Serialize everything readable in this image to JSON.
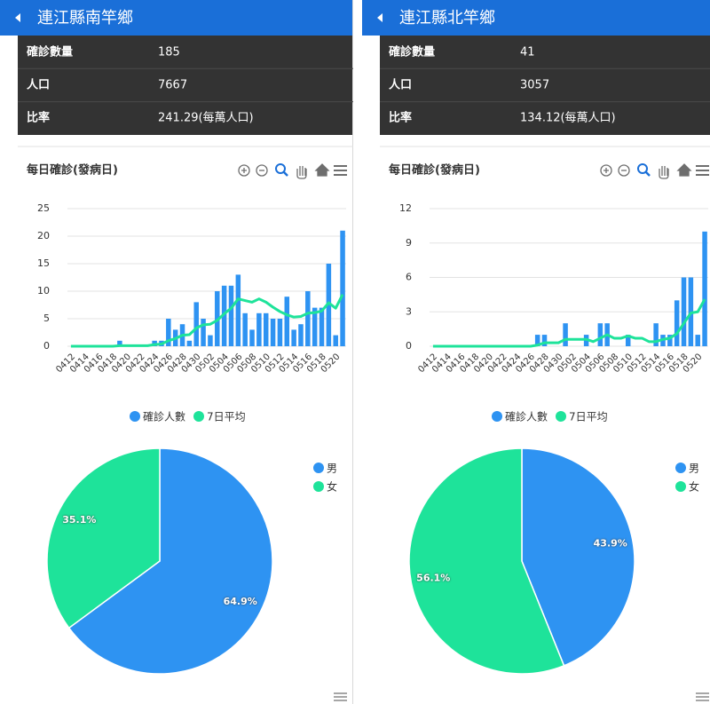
{
  "panels": [
    {
      "title": "連江縣南竿鄉",
      "rows": [
        {
          "label": "確診數量",
          "value": "185"
        },
        {
          "label": "人口",
          "value": "7667"
        },
        {
          "label": "比率",
          "value": "241.29(每萬人口)"
        }
      ]
    },
    {
      "title": "連江縣北竿鄉",
      "rows": [
        {
          "label": "確診數量",
          "value": "41"
        },
        {
          "label": "人口",
          "value": "3057"
        },
        {
          "label": "比率",
          "value": "134.12(每萬人口)"
        }
      ]
    }
  ],
  "chart_data": [
    {
      "type": "bar",
      "title": "每日確診(發病日)",
      "categories": [
        "0412",
        null,
        "0414",
        null,
        "0416",
        null,
        "0418",
        null,
        "0420",
        null,
        "0422",
        null,
        "0424",
        null,
        "0426",
        null,
        "0428",
        null,
        "0430",
        null,
        "0502",
        null,
        "0504",
        null,
        "0506",
        null,
        "0508",
        null,
        "0510",
        null,
        "0512",
        null,
        "0514",
        null,
        "0516",
        null,
        "0518",
        null,
        "0520",
        null
      ],
      "series": [
        {
          "name": "確診人數",
          "type": "bar",
          "color": "#2e93f2",
          "values": [
            0,
            0,
            0,
            0,
            0,
            0,
            0,
            1,
            0,
            0,
            0,
            0,
            1,
            1,
            5,
            3,
            4,
            1,
            8,
            5,
            2,
            10,
            11,
            11,
            13,
            6,
            3,
            6,
            6,
            5,
            5,
            9,
            3,
            4,
            10,
            7,
            7,
            15,
            2,
            21
          ]
        },
        {
          "name": "7日平均",
          "type": "line",
          "color": "#1ee39a",
          "values": [
            0,
            0,
            0,
            0,
            0,
            0,
            0,
            0.1,
            0.1,
            0.1,
            0.1,
            0.1,
            0.3,
            0.4,
            1.0,
            1.4,
            2.0,
            2.1,
            3.3,
            3.9,
            4.0,
            4.7,
            5.9,
            6.9,
            8.6,
            8.3,
            8.0,
            8.6,
            8.0,
            7.1,
            6.3,
            5.7,
            5.3,
            5.4,
            6.0,
            6.1,
            6.4,
            7.9,
            6.9,
            9.4
          ]
        }
      ],
      "ylim": [
        0,
        25
      ],
      "yticks": [
        0,
        5,
        10,
        15,
        20,
        25
      ],
      "grid": true,
      "legend": "bottom"
    },
    {
      "type": "pie",
      "categories": [
        "男",
        "女"
      ],
      "values": [
        64.9,
        35.1
      ],
      "value_labels": [
        "64.9%",
        "35.1%"
      ],
      "colors": [
        "#2e93f2",
        "#1ee39a"
      ],
      "legend": "right"
    },
    {
      "type": "bar",
      "title": "每日確診(發病日)",
      "categories": [
        "0412",
        null,
        "0414",
        null,
        "0416",
        null,
        "0418",
        null,
        "0420",
        null,
        "0422",
        null,
        "0424",
        null,
        "0426",
        null,
        "0428",
        null,
        "0430",
        null,
        "0502",
        null,
        "0504",
        null,
        "0506",
        null,
        "0508",
        null,
        "0510",
        null,
        "0512",
        null,
        "0514",
        null,
        "0516",
        null,
        "0518",
        null,
        "0520",
        null
      ],
      "series": [
        {
          "name": "確診人數",
          "type": "bar",
          "color": "#2e93f2",
          "values": [
            0,
            0,
            0,
            0,
            0,
            0,
            0,
            0,
            0,
            0,
            0,
            0,
            0,
            0,
            0,
            1,
            1,
            0,
            0,
            2,
            0,
            0,
            1,
            0,
            2,
            2,
            0,
            0,
            1,
            0,
            0,
            0,
            2,
            1,
            1,
            4,
            6,
            6,
            1,
            10
          ]
        },
        {
          "name": "7日平均",
          "type": "line",
          "color": "#1ee39a",
          "values": [
            0,
            0,
            0,
            0,
            0,
            0,
            0,
            0,
            0,
            0,
            0,
            0,
            0,
            0,
            0,
            0.1,
            0.3,
            0.3,
            0.3,
            0.6,
            0.6,
            0.6,
            0.6,
            0.4,
            0.7,
            1.0,
            0.7,
            0.7,
            0.9,
            0.7,
            0.7,
            0.4,
            0.4,
            0.6,
            0.7,
            1.1,
            2.0,
            2.9,
            3.0,
            4.1
          ]
        }
      ],
      "ylim": [
        0,
        12
      ],
      "yticks": [
        0,
        3,
        6,
        9,
        12
      ],
      "grid": true,
      "legend": "bottom"
    },
    {
      "type": "pie",
      "categories": [
        "男",
        "女"
      ],
      "values": [
        43.9,
        56.1
      ],
      "value_labels": [
        "43.9%",
        "56.1%"
      ],
      "colors": [
        "#2e93f2",
        "#1ee39a"
      ],
      "legend": "right"
    }
  ]
}
